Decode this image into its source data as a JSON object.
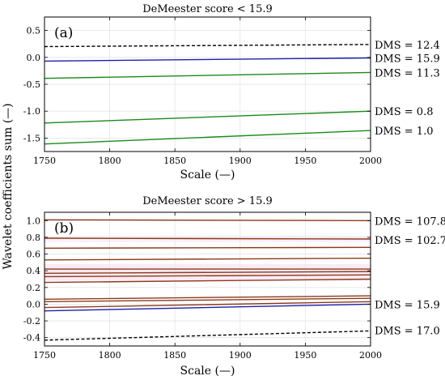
{
  "figure": {
    "ylabel": "Wavelet coefficients sum (—)"
  },
  "chart_data": [
    {
      "type": "line",
      "panel": "(a)",
      "title": "DeMeester score < 15.9",
      "xlabel": "Scale (—)",
      "ylabel": "Wavelet coefficients sum (—)",
      "xlim": [
        1750,
        2000
      ],
      "ylim": [
        -1.75,
        0.75
      ],
      "xticks": [
        "1750",
        "1800",
        "1850",
        "1900",
        "1950",
        "2000"
      ],
      "yticks": [
        "0.5",
        "0.0",
        "-0.5",
        "-1.0",
        "-1.5"
      ],
      "ytick_values": [
        0.5,
        0.0,
        -0.5,
        -1.0,
        -1.5
      ],
      "grid": true,
      "series": [
        {
          "name": "DMS = 12.4",
          "color": "#000000",
          "dash": true,
          "x": [
            1750,
            2000
          ],
          "y": [
            0.2,
            0.24
          ]
        },
        {
          "name": "DMS = 15.9",
          "color": "#1f1fa8",
          "dash": false,
          "x": [
            1750,
            2000
          ],
          "y": [
            -0.07,
            -0.01
          ]
        },
        {
          "name": "DMS = 11.3",
          "color": "#1a8a1a",
          "dash": false,
          "x": [
            1750,
            2000
          ],
          "y": [
            -0.39,
            -0.28
          ]
        },
        {
          "name": "DMS = 0.8",
          "color": "#1a8a1a",
          "dash": false,
          "x": [
            1750,
            2000
          ],
          "y": [
            -1.22,
            -1.0
          ]
        },
        {
          "name": "DMS = 1.0",
          "color": "#1a8a1a",
          "dash": false,
          "x": [
            1750,
            2000
          ],
          "y": [
            -1.61,
            -1.36
          ]
        }
      ]
    },
    {
      "type": "line",
      "panel": "(b)",
      "title": "DeMeester score > 15.9",
      "xlabel": "Scale (—)",
      "ylabel": "Wavelet coefficients sum (—)",
      "xlim": [
        1750,
        2000
      ],
      "ylim": [
        -0.5,
        1.1
      ],
      "xticks": [
        "1750",
        "1800",
        "1850",
        "1900",
        "1950",
        "2000"
      ],
      "yticks": [
        "1.0",
        "0.8",
        "0.6",
        "0.4",
        "0.2",
        "0.0",
        "-0.2",
        "-0.4"
      ],
      "ytick_values": [
        1.0,
        0.8,
        0.6,
        0.4,
        0.2,
        0.0,
        -0.2,
        -0.4
      ],
      "grid": true,
      "band_color": "#f2c6e6",
      "series": [
        {
          "name": "DMS = 107.8",
          "color": "#8b3a1a",
          "dash": false,
          "x": [
            1750,
            2000
          ],
          "y": [
            1.01,
            1.0
          ]
        },
        {
          "name": "DMS = 102.7",
          "color": "#8b3a1a",
          "dash": false,
          "x": [
            1750,
            2000
          ],
          "y": [
            0.79,
            0.78
          ]
        },
        {
          "name": "",
          "color": "#8b3a1a",
          "dash": false,
          "x": [
            1750,
            2000
          ],
          "y": [
            0.67,
            0.68
          ]
        },
        {
          "name": "",
          "color": "#8b3a1a",
          "dash": false,
          "x": [
            1750,
            2000
          ],
          "y": [
            0.53,
            0.55
          ]
        },
        {
          "name": "",
          "color": "#8b3a1a",
          "dash": false,
          "x": [
            1750,
            2000
          ],
          "y": [
            0.42,
            0.42
          ]
        },
        {
          "name": "",
          "color": "#8b3a1a",
          "dash": false,
          "x": [
            1750,
            2000
          ],
          "y": [
            0.37,
            0.39
          ]
        },
        {
          "name": "",
          "color": "#8b3a1a",
          "dash": false,
          "x": [
            1750,
            2000
          ],
          "y": [
            0.33,
            0.35
          ]
        },
        {
          "name": "",
          "color": "#8b3a1a",
          "dash": false,
          "x": [
            1750,
            2000
          ],
          "y": [
            0.26,
            0.3
          ]
        },
        {
          "name": "",
          "color": "#8b3a1a",
          "dash": false,
          "x": [
            1750,
            2000
          ],
          "y": [
            0.06,
            0.1
          ]
        },
        {
          "name": "",
          "color": "#8b3a1a",
          "dash": false,
          "x": [
            1750,
            2000
          ],
          "y": [
            0.03,
            0.07
          ]
        },
        {
          "name": "",
          "color": "#8b3a1a",
          "dash": false,
          "x": [
            1750,
            2000
          ],
          "y": [
            -0.04,
            0.03
          ]
        },
        {
          "name": "DMS = 15.9",
          "color": "#1f1fa8",
          "dash": false,
          "x": [
            1750,
            2000
          ],
          "y": [
            -0.08,
            0.0
          ]
        },
        {
          "name": "DMS = 17.0",
          "color": "#000000",
          "dash": true,
          "x": [
            1750,
            2000
          ],
          "y": [
            -0.43,
            -0.32
          ]
        }
      ],
      "annotations": [
        {
          "text": "DMS = 107.8",
          "y": 1.0
        },
        {
          "text": "DMS = 102.7",
          "y": 0.77
        },
        {
          "text": "DMS = 15.9",
          "y": 0.0
        },
        {
          "text": "DMS = 17.0",
          "y": -0.31
        }
      ]
    }
  ]
}
